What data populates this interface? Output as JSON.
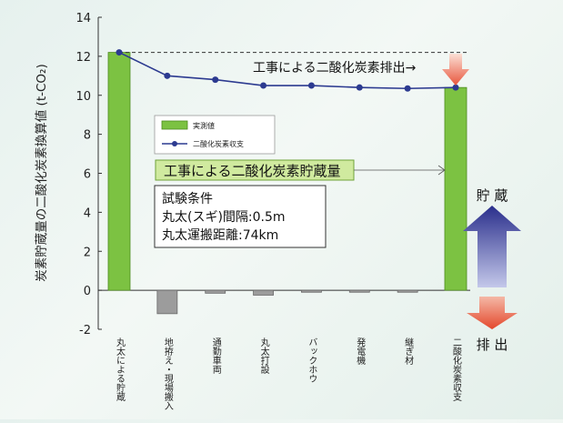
{
  "chart_data": {
    "type": "bar",
    "title": "",
    "ylabel": "炭素貯蔵量の二酸化炭素換算値 (t-CO₂)",
    "xlabel": "",
    "ylim": [
      -2,
      14
    ],
    "yticks": [
      -2,
      0,
      2,
      4,
      6,
      8,
      10,
      12,
      14
    ],
    "grid": false,
    "categories": [
      "丸太による貯蔵",
      "地拵え・現場搬入",
      "通勤車両",
      "丸太打設",
      "バックホウ",
      "発電機",
      "継ぎ材",
      "二酸化炭素収支"
    ],
    "series": [
      {
        "name": "実測値",
        "kind": "bar",
        "values": [
          12.2,
          -1.2,
          -0.15,
          -0.25,
          -0.1,
          -0.1,
          -0.1,
          10.4
        ],
        "color": "#7cc242"
      },
      {
        "name": "二酸化炭素収支",
        "kind": "line",
        "values": [
          12.2,
          11.0,
          10.8,
          10.5,
          10.5,
          10.4,
          10.35,
          10.4
        ],
        "color": "#2c3a90"
      }
    ],
    "legend_position": "upper-left",
    "annotations": {
      "emission": "工事による二酸化炭素排出→",
      "storage_box": "工事による二酸化炭素貯蔵量",
      "conditions": [
        "試験条件",
        "丸太(スギ)間隔:0.5m",
        "丸太運搬距離:74km"
      ],
      "storage_arrow_label": "貯 蔵",
      "emission_arrow_label": "排 出"
    },
    "colors": {
      "bar_positive": "#7cc242",
      "bar_negative": "#9c9c9c",
      "line": "#2c3a90",
      "arrow_top": "#2a2f8c",
      "arrow_bottom": "#e8553c"
    }
  }
}
